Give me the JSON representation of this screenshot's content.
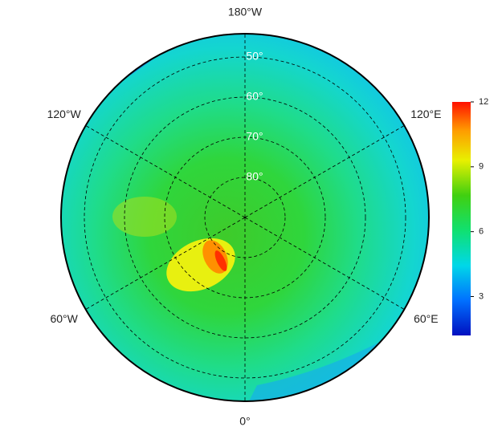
{
  "map": {
    "meridians": [
      {
        "value": 180,
        "label": "180°W"
      },
      {
        "value": 120,
        "label": "120°E"
      },
      {
        "value": 60,
        "label": "60°E"
      },
      {
        "value": 0,
        "label": "0°"
      },
      {
        "value": -60,
        "label": "60°W"
      },
      {
        "value": -120,
        "label": "120°W"
      }
    ],
    "parallels": [
      {
        "value": 50,
        "label": "50°"
      },
      {
        "value": 60,
        "label": "60°"
      },
      {
        "value": 70,
        "label": "70°"
      },
      {
        "value": 80,
        "label": "80°"
      }
    ],
    "colorbar": {
      "lim": [
        1.2,
        12
      ],
      "ticks": [
        3,
        6,
        9,
        12
      ]
    }
  }
}
